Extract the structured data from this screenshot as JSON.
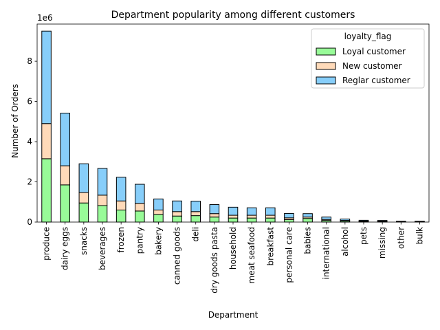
{
  "chart_data": {
    "type": "bar",
    "stacked": true,
    "title": "Department popularity among different customers",
    "xlabel": "Department",
    "ylabel": "Number of Orders",
    "y_offset_label": "1e6",
    "y_scale": 1000000,
    "ylim": [
      0,
      9.85
    ],
    "yticks": [
      0,
      2,
      4,
      6,
      8
    ],
    "grid": false,
    "legend": {
      "title": "loyalty_flag",
      "placement": "top-right"
    },
    "categories": [
      "produce",
      "dairy eggs",
      "snacks",
      "beverages",
      "frozen",
      "pantry",
      "bakery",
      "canned goods",
      "deli",
      "dry goods pasta",
      "household",
      "meat seafood",
      "breakfast",
      "personal care",
      "babies",
      "international",
      "alcohol",
      "pets",
      "missing",
      "other",
      "bulk"
    ],
    "series": [
      {
        "name": "Loyal customer",
        "color": "#98fb98",
        "values": [
          3.15,
          1.85,
          0.95,
          0.82,
          0.6,
          0.55,
          0.38,
          0.3,
          0.32,
          0.25,
          0.2,
          0.2,
          0.2,
          0.12,
          0.18,
          0.08,
          0.05,
          0.03,
          0.02,
          0.01,
          0.01
        ]
      },
      {
        "name": "New customer",
        "color": "#ffdab9",
        "values": [
          1.75,
          0.95,
          0.52,
          0.52,
          0.45,
          0.38,
          0.22,
          0.22,
          0.2,
          0.17,
          0.14,
          0.14,
          0.14,
          0.09,
          0.07,
          0.05,
          0.03,
          0.02,
          0.02,
          0.01,
          0.01
        ]
      },
      {
        "name": "Reglar customer",
        "color": "#87cefa",
        "values": [
          4.6,
          2.62,
          1.43,
          1.33,
          1.18,
          0.95,
          0.55,
          0.53,
          0.52,
          0.45,
          0.4,
          0.37,
          0.37,
          0.22,
          0.17,
          0.12,
          0.07,
          0.04,
          0.04,
          0.02,
          0.02
        ]
      }
    ]
  }
}
